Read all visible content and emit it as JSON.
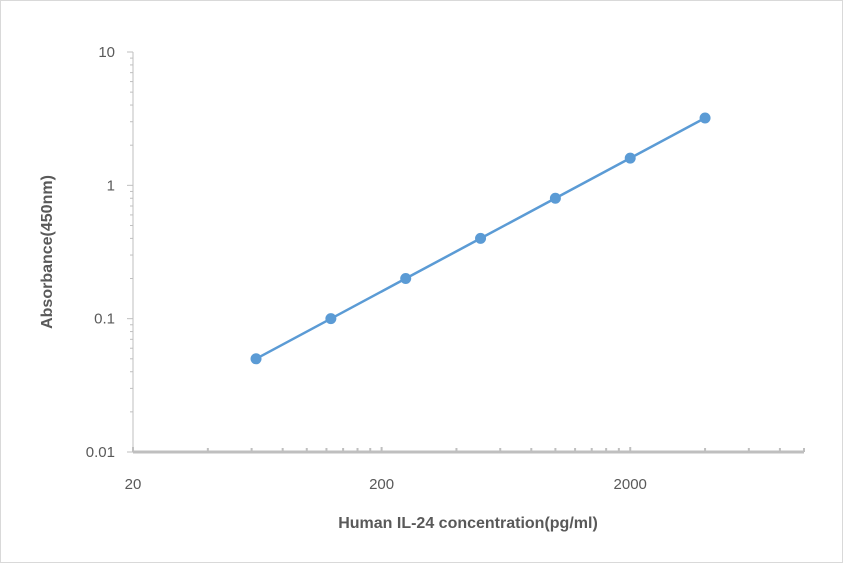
{
  "chart_data": {
    "type": "scatter",
    "title": "",
    "xlabel": "Human IL-24 concentration(pg/ml)",
    "ylabel": "Absorbance(450nm)",
    "x_scale": "log",
    "y_scale": "log",
    "xlim": [
      20,
      10000
    ],
    "ylim": [
      0.01,
      10
    ],
    "x_ticks": [
      20,
      200,
      2000
    ],
    "x_tick_labels": [
      "20",
      "200",
      "2000"
    ],
    "y_ticks": [
      0.01,
      0.1,
      1,
      10
    ],
    "y_tick_labels": [
      "0.01",
      "0.1",
      "1",
      "10"
    ],
    "grid": false,
    "legend": "none",
    "series": [
      {
        "color": "#5b9bd5",
        "x": [
          62.5,
          125,
          250,
          500,
          1000,
          2000,
          4000
        ],
        "y": [
          0.05,
          0.1,
          0.2,
          0.4,
          0.8,
          1.6,
          3.2
        ]
      }
    ]
  }
}
